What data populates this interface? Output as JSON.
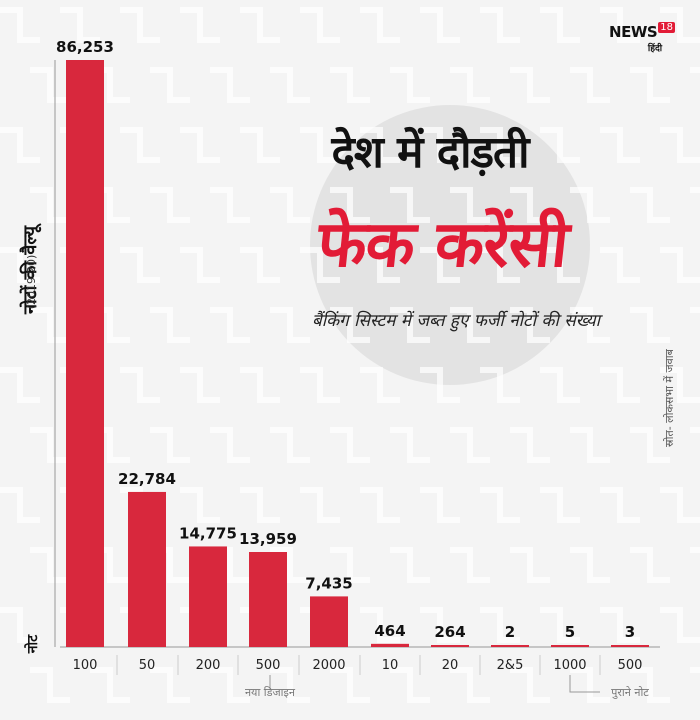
{
  "logo": {
    "name": "NEWS",
    "number": "18",
    "sub": "हिंदी"
  },
  "title_line1": "देश में दौड़ती",
  "title_line2": "फेक करेंसी",
  "subtitle": "बैंकिंग सिस्टम में जब्त हुए फर्जी नोटों की संख्या",
  "source": "स्रोत- लोकसभा में जवाब",
  "note_label": "नोट",
  "colors": {
    "bar": "#d8283d",
    "title_accent": "#e21b36",
    "text": "#111111"
  },
  "chart_data": {
    "type": "bar",
    "title": "फेक करेंसी",
    "ylabel": "नोटों की वैल्यू",
    "ylabel_sub": "(2019-20)",
    "categories": [
      "100",
      "50",
      "200",
      "500",
      "2000",
      "10",
      "20",
      "2&5",
      "1000",
      "500"
    ],
    "values": [
      86253,
      22784,
      14775,
      13959,
      7435,
      464,
      264,
      2,
      5,
      3
    ],
    "value_labels": [
      "86,253",
      "22,784",
      "14,775",
      "13,959",
      "7,435",
      "464",
      "264",
      "2",
      "5",
      "3"
    ],
    "groups": [
      {
        "label": "नया डिजाइन",
        "categories": [
          "100",
          "50",
          "200",
          "500",
          "2000"
        ]
      },
      {
        "label": "पुराने नोट",
        "categories": [
          "1000",
          "500"
        ]
      }
    ],
    "ylim": [
      0,
      86253
    ],
    "grid": false
  }
}
